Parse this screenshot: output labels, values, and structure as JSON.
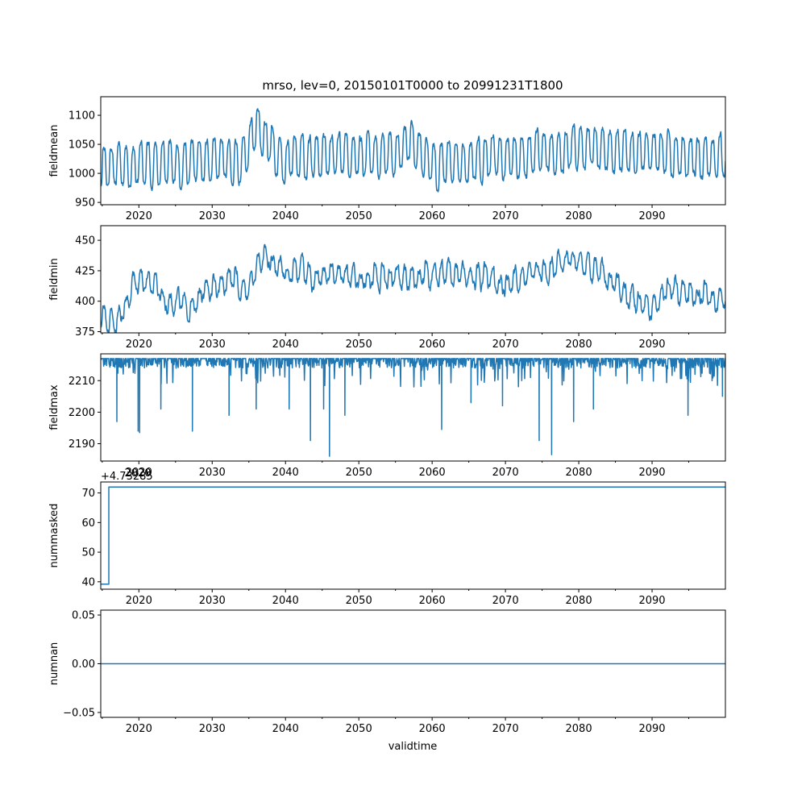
{
  "title": "mrso, lev=0, 20150101T0000 to 20991231T1800",
  "xlabel": "validtime",
  "colors": {
    "series": "#1f77b4",
    "axes": "#000000",
    "background": "#ffffff"
  },
  "chart_data": [
    {
      "type": "line",
      "ylabel": "fieldmean",
      "xlim": [
        2014.8,
        2100.0
      ],
      "ylim": [
        946,
        1132
      ],
      "xticks": [
        2020,
        2030,
        2040,
        2050,
        2060,
        2070,
        2080,
        2090
      ],
      "xtick_labels": [
        "2020",
        "2030",
        "2040",
        "2050",
        "2060",
        "2070",
        "2080",
        "2090"
      ],
      "yticks": [
        950,
        1000,
        1050,
        1100
      ],
      "ytick_labels": [
        "950",
        "1000",
        "1050",
        "1100"
      ],
      "generator": {
        "base": 1015,
        "amp": 32,
        "trend": [
          [
            2015,
            0
          ],
          [
            2034,
            5
          ],
          [
            2036,
            60
          ],
          [
            2038,
            30
          ],
          [
            2040,
            10
          ],
          [
            2055,
            15
          ],
          [
            2057,
            40
          ],
          [
            2060,
            0
          ],
          [
            2068,
            10
          ],
          [
            2080,
            30
          ],
          [
            2100,
            10
          ]
        ],
        "noise": 10,
        "seed": 11,
        "kind": "oscillate"
      },
      "series": [
        {
          "name": "fieldmean"
        }
      ]
    },
    {
      "type": "line",
      "ylabel": "fieldmin",
      "xlim": [
        2014.8,
        2100.0
      ],
      "ylim": [
        374,
        462
      ],
      "xticks": [
        2020,
        2030,
        2040,
        2050,
        2060,
        2070,
        2080,
        2090
      ],
      "xtick_labels": [
        "2020",
        "2030",
        "2040",
        "2050",
        "2060",
        "2070",
        "2080",
        "2090"
      ],
      "yticks": [
        375,
        400,
        425,
        450
      ],
      "ytick_labels": [
        "375",
        "400",
        "425",
        "450"
      ],
      "generator": {
        "base": 0,
        "amp": 7,
        "trend": [
          [
            2015,
            388
          ],
          [
            2017,
            383
          ],
          [
            2019,
            412
          ],
          [
            2021,
            418
          ],
          [
            2024,
            398
          ],
          [
            2027,
            400
          ],
          [
            2030,
            412
          ],
          [
            2033,
            418
          ],
          [
            2035,
            410
          ],
          [
            2037,
            440
          ],
          [
            2040,
            425
          ],
          [
            2050,
            418
          ],
          [
            2060,
            422
          ],
          [
            2065,
            420
          ],
          [
            2070,
            415
          ],
          [
            2075,
            425
          ],
          [
            2080,
            435
          ],
          [
            2085,
            415
          ],
          [
            2088,
            398
          ],
          [
            2090,
            392
          ],
          [
            2092,
            415
          ],
          [
            2096,
            405
          ],
          [
            2100,
            402
          ]
        ],
        "noise": 6,
        "seed": 23,
        "kind": "oscillate"
      },
      "series": [
        {
          "name": "fieldmin"
        }
      ]
    },
    {
      "type": "line",
      "ylabel": "fieldmax",
      "xlim": [
        2014.8,
        2100.0
      ],
      "ylim": [
        2184.5,
        2218.5
      ],
      "xticks": [
        2020,
        2030,
        2040,
        2050,
        2060,
        2070,
        2080,
        2090
      ],
      "xtick_labels": [
        "2020",
        "2030",
        "2040",
        "2050",
        "2060",
        "2070",
        "2080",
        "2090"
      ],
      "yticks": [
        2190,
        2200,
        2210
      ],
      "ytick_labels": [
        "2190",
        "2200",
        "2210"
      ],
      "generator": {
        "top": 2217,
        "noise": 3,
        "seed": 37,
        "kind": "spiky",
        "spikes": [
          [
            2017.0,
            2197
          ],
          [
            2019.9,
            2194
          ],
          [
            2020.1,
            2193.5
          ],
          [
            2023.0,
            2201
          ],
          [
            2027.3,
            2194
          ],
          [
            2032.3,
            2199
          ],
          [
            2036.0,
            2201
          ],
          [
            2040.5,
            2201
          ],
          [
            2043.4,
            2191
          ],
          [
            2045.2,
            2201
          ],
          [
            2046.0,
            2186
          ],
          [
            2048.1,
            2199
          ],
          [
            2061.3,
            2194.5
          ],
          [
            2065.3,
            2203
          ],
          [
            2069.6,
            2202
          ],
          [
            2074.6,
            2191
          ],
          [
            2076.3,
            2186.5
          ],
          [
            2079.3,
            2197
          ],
          [
            2082.0,
            2201
          ],
          [
            2094.9,
            2199
          ],
          [
            2099.6,
            2205
          ]
        ]
      },
      "series": [
        {
          "name": "fieldmax"
        }
      ]
    },
    {
      "type": "line",
      "ylabel": "nummasked",
      "offset_label": "+4.73285",
      "overlap_tick_label": "2020",
      "xlim": [
        2014.8,
        2100.0
      ],
      "ylim": [
        37.5,
        73.7
      ],
      "xticks": [
        2020,
        2030,
        2040,
        2050,
        2060,
        2070,
        2080,
        2090
      ],
      "xtick_labels": [
        "2020",
        "2030",
        "2040",
        "2050",
        "2060",
        "2070",
        "2080",
        "2090"
      ],
      "yticks": [
        40,
        50,
        60,
        70
      ],
      "ytick_labels": [
        "40",
        "50",
        "60",
        "70"
      ],
      "points": [
        [
          2014.8,
          39.2
        ],
        [
          2015.9,
          39.2
        ],
        [
          2015.9,
          72.0
        ],
        [
          2100.0,
          72.0
        ]
      ],
      "series": [
        {
          "name": "nummasked"
        }
      ]
    },
    {
      "type": "line",
      "ylabel": "numnan",
      "xlim": [
        2014.8,
        2100.0
      ],
      "ylim": [
        -0.055,
        0.055
      ],
      "xticks": [
        2020,
        2030,
        2040,
        2050,
        2060,
        2070,
        2080,
        2090
      ],
      "xtick_labels": [
        "2020",
        "2030",
        "2040",
        "2050",
        "2060",
        "2070",
        "2080",
        "2090"
      ],
      "yticks": [
        -0.05,
        0.0,
        0.05
      ],
      "ytick_labels": [
        "−0.05",
        "0.00",
        "0.05"
      ],
      "points": [
        [
          2014.8,
          0.0
        ],
        [
          2100.0,
          0.0
        ]
      ],
      "series": [
        {
          "name": "numnan"
        }
      ]
    }
  ]
}
